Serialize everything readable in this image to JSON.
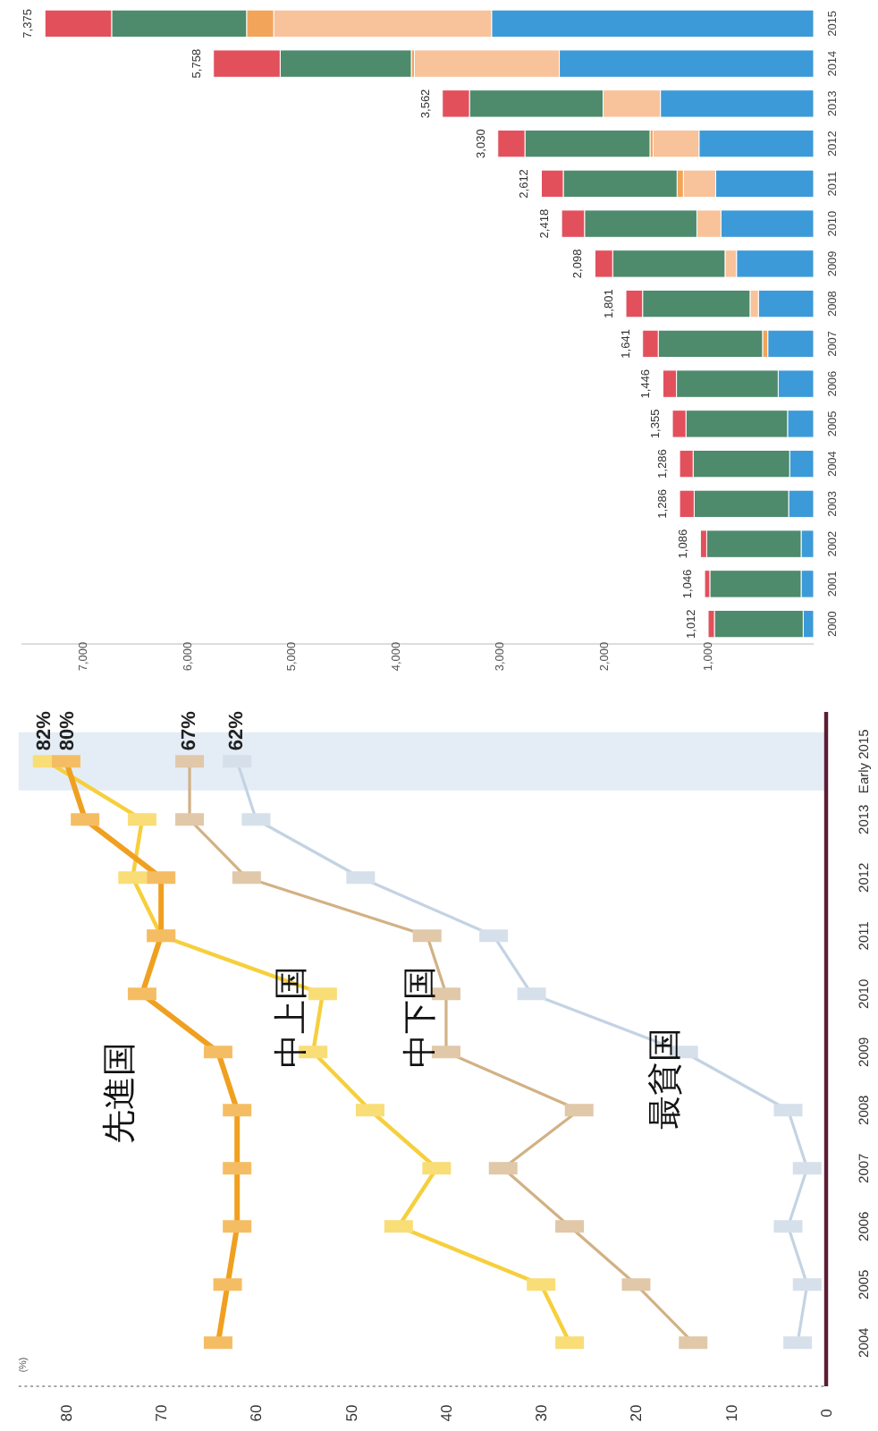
{
  "chart_data": [
    {
      "type": "line",
      "orientation": "horizontal",
      "annotations": [
        "(%)"
      ],
      "categories": [
        "Early 2015",
        "2013",
        "2012",
        "2011",
        "2010",
        "2009",
        "2008",
        "2007",
        "2006",
        "2005",
        "2004"
      ],
      "xlim": [
        85,
        0
      ],
      "xticks": [
        80,
        70,
        60,
        50,
        40,
        30,
        20,
        10,
        0
      ],
      "marker": "square",
      "bands": [
        {
          "axis": "y",
          "from": "Early 2015",
          "to": "Early 2015",
          "color": "#e4edf6"
        }
      ],
      "series": [
        {
          "name": "先進国",
          "color": "#f0a020",
          "values": [
            80,
            78,
            70,
            70,
            72,
            64,
            62,
            62,
            62,
            63,
            64
          ],
          "value_labels": [
            "80%",
            null,
            null,
            null,
            null,
            null,
            null,
            null,
            null,
            null,
            null
          ]
        },
        {
          "name": "中上国",
          "color": "#f6cf3c",
          "values": [
            82,
            72,
            73,
            70,
            53,
            54,
            48,
            41,
            45,
            30,
            27
          ],
          "value_labels": [
            "82%",
            null,
            null,
            null,
            null,
            null,
            null,
            null,
            null,
            null,
            null
          ]
        },
        {
          "name": "中下国",
          "color": "#d2b184",
          "values": [
            67,
            67,
            61,
            42,
            40,
            40,
            26,
            34,
            27,
            20,
            14
          ],
          "value_labels": [
            "67%",
            null,
            null,
            null,
            null,
            null,
            null,
            null,
            null,
            null,
            null
          ]
        },
        {
          "name": "最貧国",
          "color": "#c3d3e3",
          "values": [
            62,
            60,
            49,
            35,
            31,
            15,
            4,
            2,
            4,
            2,
            3
          ],
          "value_labels": [
            "62%",
            null,
            null,
            null,
            null,
            null,
            null,
            null,
            null,
            null,
            null
          ]
        }
      ]
    },
    {
      "type": "bar",
      "stacked": true,
      "orientation": "horizontal",
      "categories": [
        "2015",
        "2014",
        "2013",
        "2012",
        "2011",
        "2010",
        "2009",
        "2008",
        "2007",
        "2006",
        "2005",
        "2004",
        "2003",
        "2002",
        "2001",
        "2000"
      ],
      "xlim": [
        7600,
        0
      ],
      "xticks": [
        {
          "value": 7000,
          "label": "7,000"
        },
        {
          "value": 6000,
          "label": "6,000"
        },
        {
          "value": 5000,
          "label": "5,000"
        },
        {
          "value": 4000,
          "label": "4,000"
        },
        {
          "value": 3000,
          "label": "3,000"
        },
        {
          "value": 2000,
          "label": "2,000"
        },
        {
          "value": 1000,
          "label": "1,000"
        }
      ],
      "totals": [
        "7,375",
        "5,758",
        "3,562",
        "3,030",
        "2,612",
        "2,418",
        "2,098",
        "1,801",
        "1,641",
        "1,446",
        "1,355",
        "1,286",
        "1,286",
        "1,086",
        "1,046",
        "1,012"
      ],
      "series": [
        {
          "color": "#3d9ad8",
          "values": [
            3090,
            2440,
            1470,
            1100,
            940,
            890,
            740,
            530,
            440,
            340,
            250,
            230,
            240,
            120,
            120,
            100
          ]
        },
        {
          "color": "#f8c29a",
          "values": [
            2090,
            1390,
            550,
            440,
            310,
            230,
            110,
            80,
            0,
            0,
            0,
            0,
            0,
            0,
            0,
            0
          ]
        },
        {
          "color": "#f2a45a",
          "values": [
            260,
            30,
            0,
            30,
            60,
            0,
            0,
            0,
            50,
            0,
            0,
            0,
            0,
            0,
            0,
            0
          ]
        },
        {
          "color": "#4e8a6c",
          "values": [
            1295,
            1258,
            1282,
            1200,
            1092,
            1078,
            1078,
            1031,
            1001,
            976,
            975,
            926,
            906,
            906,
            876,
            852
          ]
        },
        {
          "color": "#e2505c",
          "values": [
            640,
            640,
            260,
            260,
            210,
            220,
            170,
            160,
            150,
            130,
            130,
            130,
            140,
            60,
            50,
            60
          ]
        }
      ]
    }
  ]
}
